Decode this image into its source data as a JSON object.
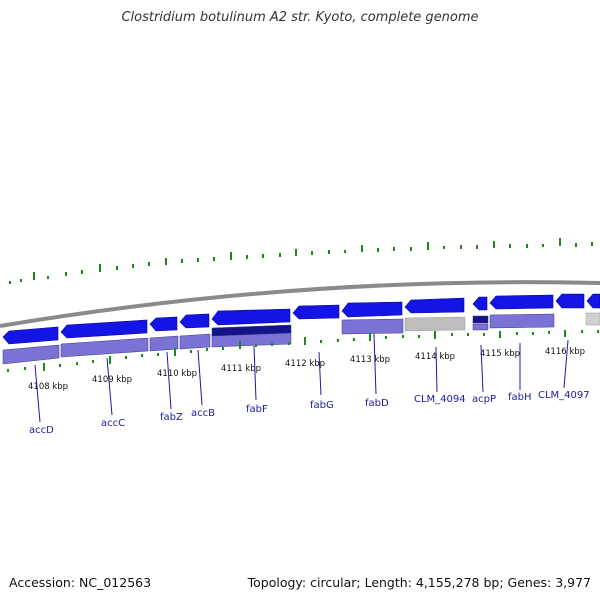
{
  "header": {
    "title": "Clostridium botulinum A2 str. Kyoto, complete genome"
  },
  "footer": {
    "accession": "Accession: NC_012563",
    "stats": "Topology: circular; Length: 4,155,278 bp; Genes: 3,977"
  },
  "ruler": {
    "labels": [
      "4108 kbp",
      "4109 kbp",
      "4110 kbp",
      "4111 kbp",
      "4112 kbp",
      "4113 kbp",
      "4114 kbp",
      "4115 kbp",
      "4116 kbp"
    ]
  },
  "genes": {
    "labels": [
      "accD",
      "accC",
      "fabZ",
      "accB",
      "fabF",
      "fabG",
      "fabD",
      "CLM_4094",
      "acpP",
      "fabH",
      "CLM_4097"
    ]
  },
  "colors": {
    "backbone": "#8a8a8a",
    "gene_forward": "#1414e6",
    "gene_reverse": "#1414e6",
    "cds_band": "#7b72d6",
    "cds_dark": "#14148a",
    "cds_gray": "#bdbdbd",
    "tick_green": "#1a8a1a",
    "label": "#1a1aa8"
  }
}
